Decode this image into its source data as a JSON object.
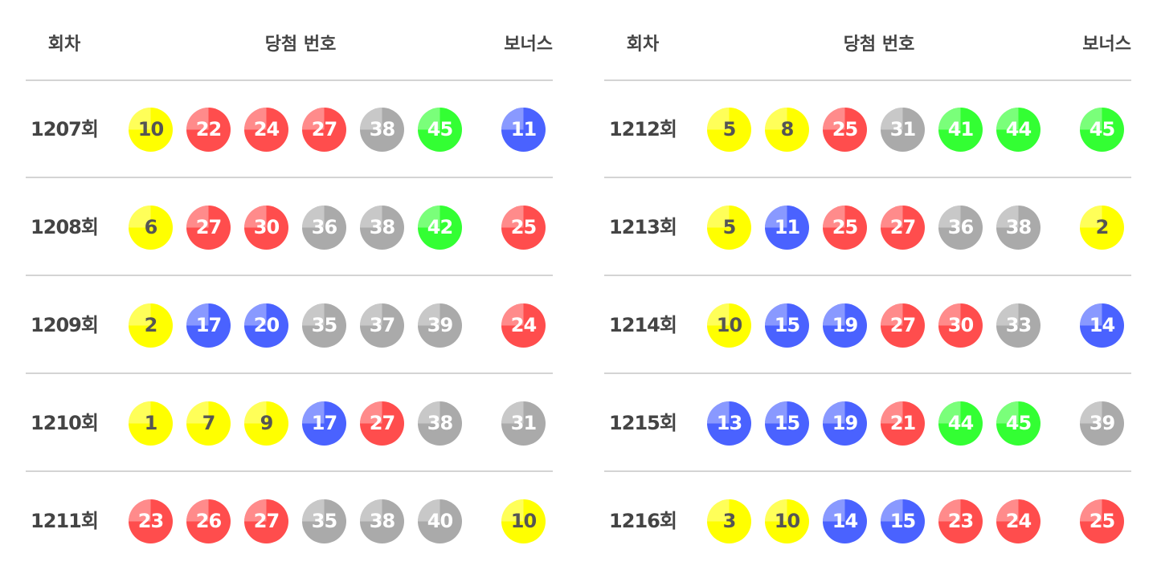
{
  "headers": {
    "round": "회차",
    "numbers": "당첨 번호",
    "bonus": "보너스"
  },
  "round_suffix": "회",
  "colors": {
    "yellow": "#ffff00",
    "blue": "#4a62ff",
    "red": "#ff4d4d",
    "gray": "#aaaaaa",
    "green": "#33ff33"
  },
  "tables": [
    {
      "rows": [
        {
          "round": "1207회",
          "numbers": [
            10,
            22,
            24,
            27,
            38,
            45
          ],
          "bonus": 11
        },
        {
          "round": "1208회",
          "numbers": [
            6,
            27,
            30,
            36,
            38,
            42
          ],
          "bonus": 25
        },
        {
          "round": "1209회",
          "numbers": [
            2,
            17,
            20,
            35,
            37,
            39
          ],
          "bonus": 24
        },
        {
          "round": "1210회",
          "numbers": [
            1,
            7,
            9,
            17,
            27,
            38
          ],
          "bonus": 31
        },
        {
          "round": "1211회",
          "numbers": [
            23,
            26,
            27,
            35,
            38,
            40
          ],
          "bonus": 10
        }
      ]
    },
    {
      "rows": [
        {
          "round": "1212회",
          "numbers": [
            5,
            8,
            25,
            31,
            41,
            44
          ],
          "bonus": 45
        },
        {
          "round": "1213회",
          "numbers": [
            5,
            11,
            25,
            27,
            36,
            38
          ],
          "bonus": 2
        },
        {
          "round": "1214회",
          "numbers": [
            10,
            15,
            19,
            27,
            30,
            33
          ],
          "bonus": 14
        },
        {
          "round": "1215회",
          "numbers": [
            13,
            15,
            19,
            21,
            44,
            45
          ],
          "bonus": 39
        },
        {
          "round": "1216회",
          "numbers": [
            3,
            10,
            14,
            15,
            23,
            24
          ],
          "bonus": 25
        }
      ]
    }
  ]
}
